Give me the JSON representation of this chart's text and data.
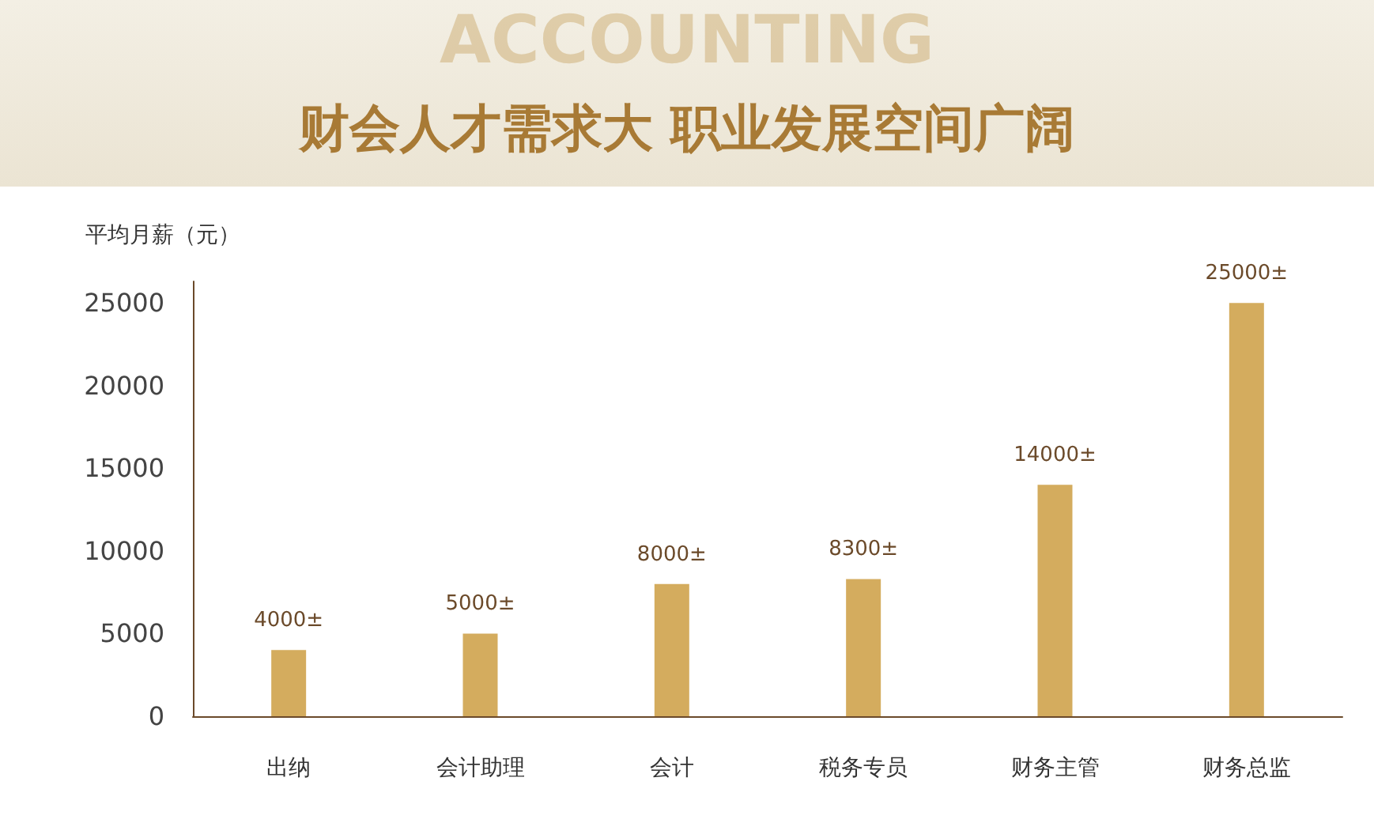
{
  "chart_data": {
    "type": "bar",
    "title": "财会人才需求大 职业发展空间广阔",
    "ylabel": "平均月薪（元）",
    "annotations": [
      "ACCOUNTING"
    ],
    "categories": [
      "出纳",
      "会计助理",
      "会计",
      "税务专员",
      "财务主管",
      "财务总监"
    ],
    "values": [
      4000,
      5000,
      8000,
      8300,
      14000,
      25000
    ],
    "value_labels": [
      "4000±",
      "5000±",
      "8000±",
      "8300±",
      "14000±",
      "25000±"
    ],
    "color": "#d4ac5e",
    "ylim": [
      0,
      26300
    ],
    "yticks": [
      0,
      5000,
      10000,
      15000,
      20000,
      25000
    ],
    "grid": false
  }
}
